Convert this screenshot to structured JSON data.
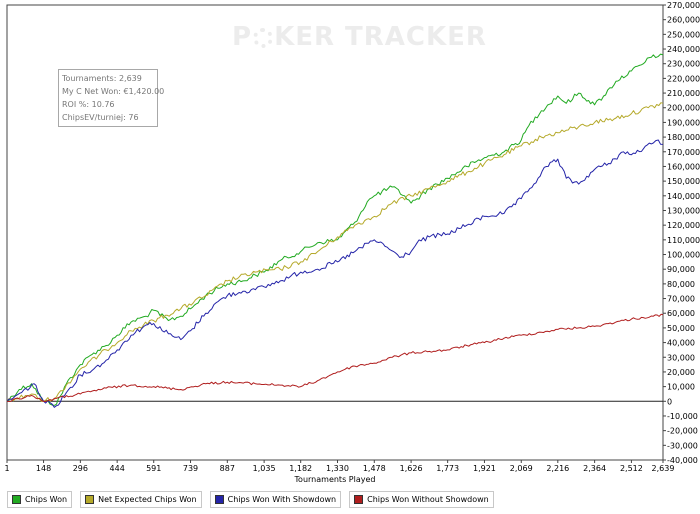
{
  "watermark": {
    "left": "P",
    "right": "KER TRACKER"
  },
  "stats": {
    "tournaments": "Tournaments: 2,639",
    "net_won": "My C Net Won: €1,420.00",
    "roi": "ROI %: 10.76",
    "chips_ev": "ChipsEV/turniej: 76"
  },
  "chart_data": {
    "type": "line",
    "xlabel": "Tournaments Played",
    "ylabel": "",
    "xlim": [
      1,
      2639
    ],
    "ylim": [
      -40000,
      270000
    ],
    "x_ticks": [
      1,
      148,
      296,
      444,
      591,
      739,
      887,
      1035,
      1182,
      1330,
      1478,
      1626,
      1773,
      1921,
      2069,
      2216,
      2364,
      2512,
      2639
    ],
    "x_tick_labels": [
      "1",
      "148",
      "296",
      "444",
      "591",
      "739",
      "887",
      "1,035",
      "1,182",
      "1,330",
      "1,478",
      "1,626",
      "1,773",
      "1,921",
      "2,069",
      "2,216",
      "2,364",
      "2,512",
      "2,639"
    ],
    "y_ticks": [
      -40000,
      -30000,
      -20000,
      -10000,
      0,
      10000,
      20000,
      30000,
      40000,
      50000,
      60000,
      70000,
      80000,
      90000,
      100000,
      110000,
      120000,
      130000,
      140000,
      150000,
      160000,
      170000,
      180000,
      190000,
      200000,
      210000,
      220000,
      230000,
      240000,
      250000,
      260000,
      270000
    ],
    "y_tick_labels": [
      "-40,000",
      "-30,000",
      "-20,000",
      "-10,000",
      "0",
      "10,000",
      "20,000",
      "30,000",
      "40,000",
      "50,000",
      "60,000",
      "70,000",
      "80,000",
      "90,000",
      "100,000",
      "110,000",
      "120,000",
      "130,000",
      "140,000",
      "150,000",
      "160,000",
      "170,000",
      "180,000",
      "190,000",
      "200,000",
      "210,000",
      "220,000",
      "230,000",
      "240,000",
      "250,000",
      "260,000",
      "270,000"
    ],
    "grid": false,
    "legend_position": "bottom",
    "series": [
      {
        "name": "Chips Won",
        "color": "#22aa22",
        "x": [
          1,
          50,
          100,
          148,
          200,
          240,
          296,
          350,
          400,
          444,
          500,
          560,
          591,
          650,
          700,
          739,
          800,
          850,
          887,
          950,
          1000,
          1035,
          1100,
          1182,
          1250,
          1330,
          1400,
          1450,
          1478,
          1550,
          1600,
          1626,
          1650,
          1700,
          1773,
          1850,
          1921,
          2000,
          2069,
          2100,
          2150,
          2216,
          2250,
          2300,
          2364,
          2400,
          2450,
          2512,
          2560,
          2600,
          2620,
          2639
        ],
        "y": [
          0,
          8000,
          12000,
          0,
          -2000,
          12000,
          25000,
          33000,
          38000,
          45000,
          54000,
          58000,
          62000,
          55000,
          58000,
          63000,
          72000,
          77000,
          80000,
          82000,
          86000,
          88000,
          96000,
          102000,
          108000,
          110000,
          122000,
          136000,
          140000,
          146000,
          140000,
          135000,
          138000,
          145000,
          152000,
          160000,
          166000,
          170000,
          178000,
          188000,
          198000,
          208000,
          203000,
          210000,
          202000,
          208000,
          218000,
          225000,
          230000,
          236000,
          235000,
          236000
        ]
      },
      {
        "name": "Net Expected Chips Won",
        "color": "#b5a92a",
        "x": [
          1,
          100,
          148,
          200,
          296,
          400,
          500,
          591,
          700,
          800,
          887,
          1000,
          1100,
          1182,
          1250,
          1330,
          1400,
          1478,
          1550,
          1626,
          1700,
          1773,
          1850,
          1921,
          2000,
          2069,
          2150,
          2216,
          2300,
          2364,
          2450,
          2512,
          2580,
          2639
        ],
        "y": [
          0,
          5000,
          0,
          3000,
          22000,
          35000,
          48000,
          55000,
          63000,
          72000,
          82000,
          88000,
          90000,
          95000,
          102000,
          112000,
          120000,
          126000,
          135000,
          140000,
          145000,
          150000,
          156000,
          162000,
          168000,
          174000,
          180000,
          183000,
          187000,
          190000,
          193000,
          196000,
          200000,
          203000
        ]
      },
      {
        "name": "Chips Won With Showdown",
        "color": "#2424a8",
        "x": [
          1,
          60,
          110,
          148,
          200,
          240,
          296,
          350,
          400,
          444,
          500,
          560,
          591,
          650,
          700,
          739,
          800,
          850,
          887,
          950,
          1000,
          1035,
          1100,
          1182,
          1250,
          1330,
          1400,
          1478,
          1530,
          1580,
          1626,
          1650,
          1700,
          1773,
          1850,
          1921,
          2000,
          2069,
          2120,
          2170,
          2216,
          2250,
          2300,
          2364,
          2420,
          2480,
          2512,
          2560,
          2600,
          2620,
          2639
        ],
        "y": [
          0,
          6000,
          12000,
          0,
          -3000,
          6000,
          18000,
          22000,
          28000,
          35000,
          45000,
          52000,
          53000,
          46000,
          42000,
          48000,
          60000,
          68000,
          72000,
          75000,
          76000,
          78000,
          82000,
          88000,
          90000,
          95000,
          102000,
          110000,
          105000,
          98000,
          102000,
          108000,
          112000,
          114000,
          120000,
          126000,
          128000,
          138000,
          148000,
          160000,
          165000,
          152000,
          148000,
          158000,
          162000,
          170000,
          168000,
          172000,
          176000,
          178000,
          175000
        ]
      },
      {
        "name": "Chips Won Without Showdown",
        "color": "#b01e1e",
        "x": [
          1,
          100,
          148,
          200,
          296,
          400,
          500,
          591,
          700,
          800,
          887,
          1000,
          1100,
          1182,
          1250,
          1330,
          1400,
          1478,
          1550,
          1626,
          1700,
          1773,
          1850,
          1921,
          2000,
          2069,
          2150,
          2216,
          2300,
          2364,
          2450,
          2512,
          2560,
          2600,
          2639
        ],
        "y": [
          0,
          4000,
          0,
          2000,
          5000,
          9000,
          11000,
          10000,
          8000,
          12000,
          13000,
          12000,
          11000,
          10000,
          14000,
          20000,
          24000,
          26000,
          30000,
          33000,
          34000,
          35000,
          38000,
          40000,
          43000,
          45000,
          47000,
          49000,
          50000,
          51000,
          54000,
          56000,
          57000,
          58000,
          59000
        ]
      }
    ]
  }
}
